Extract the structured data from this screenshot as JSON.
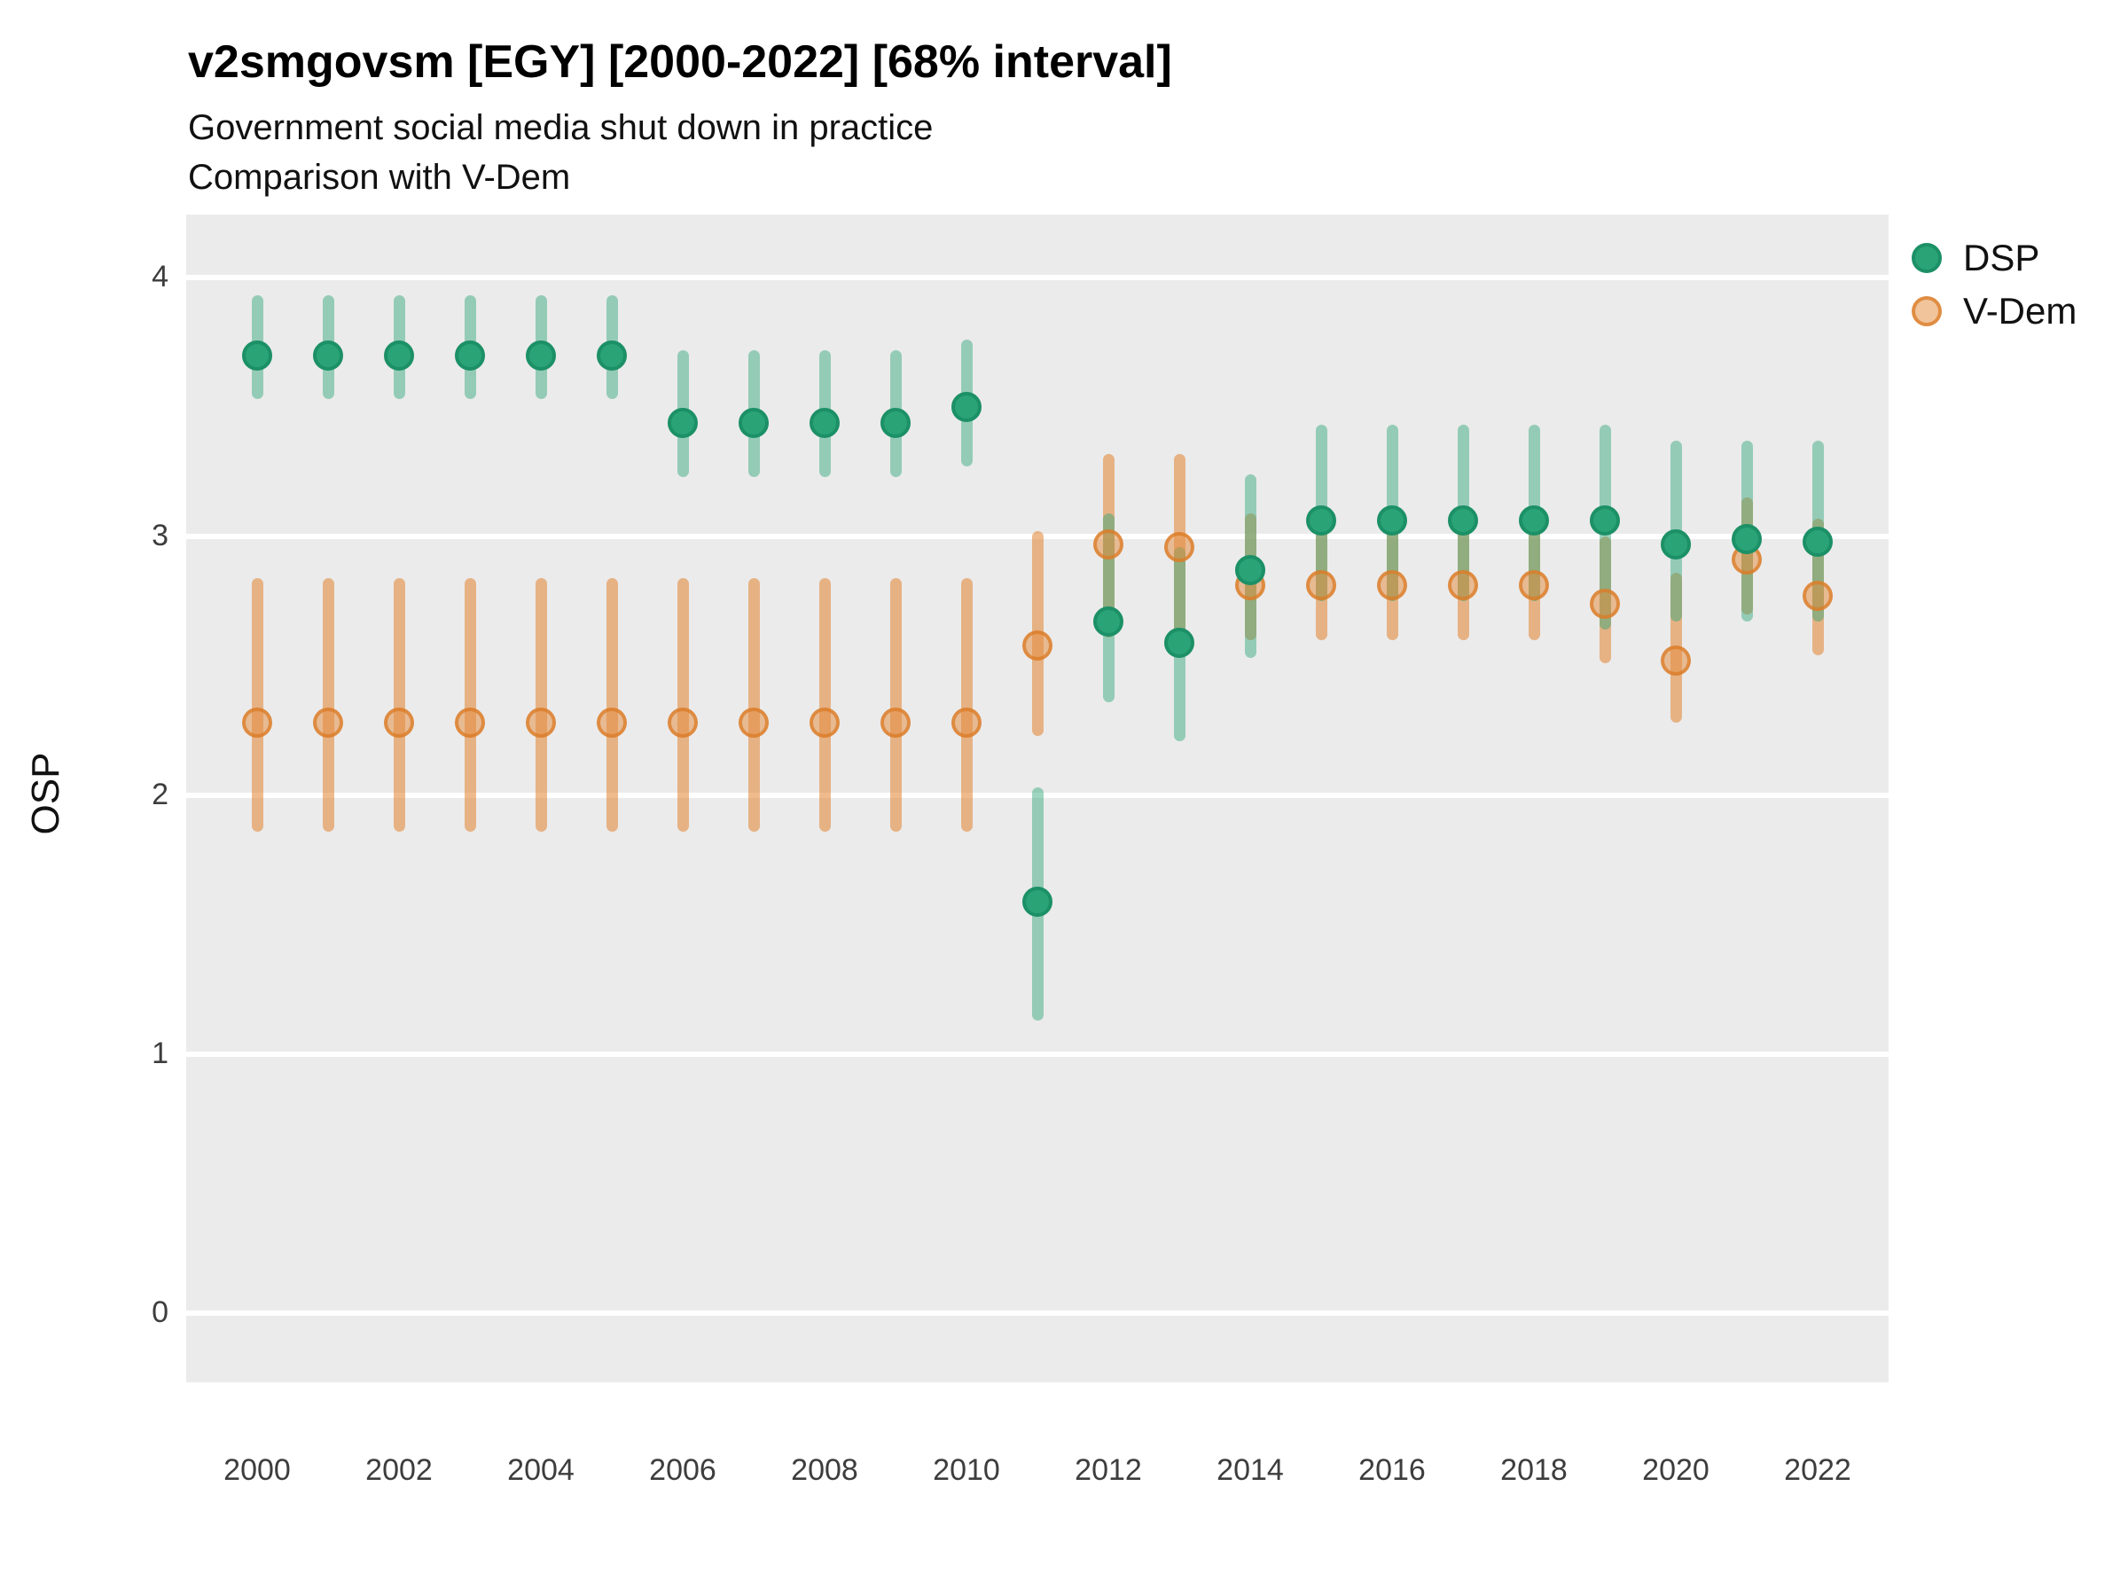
{
  "header": {
    "title": "v2smgovsm [EGY] [2000-2022] [68% interval]",
    "subtitle": "Government social media shut down in practice",
    "subtitle2": "Comparison with V-Dem"
  },
  "legend": {
    "items": [
      {
        "label": "DSP"
      },
      {
        "label": "V-Dem"
      }
    ]
  },
  "colors": {
    "panel_background": "#EBEBEB",
    "gridline": "#FFFFFF",
    "dsp_dot": "#2AA377",
    "dsp_dot_ring": "#1C9066",
    "dsp_line": "rgba(42,163,119,0.45)",
    "vdem_dot_fill": "rgba(228,138,58,0.5)",
    "vdem_dot_ring": "rgba(219,123,38,0.75)",
    "vdem_line": "rgba(226,132,48,0.55)"
  },
  "chart_data": {
    "type": "pointrange-scatter",
    "title": "v2smgovsm [EGY] [2000-2022] [68% interval]",
    "subtitle": "Government social media shut down in practice",
    "note": "Comparison with V-Dem",
    "interval": "68%",
    "xlabel": "",
    "ylabel": "OSP",
    "xlim": [
      1999,
      2023
    ],
    "ylim": [
      -0.27,
      4.24
    ],
    "x_ticks": [
      2000,
      2002,
      2004,
      2006,
      2008,
      2010,
      2012,
      2014,
      2016,
      2018,
      2020,
      2022
    ],
    "y_ticks": [
      0,
      1,
      2,
      3,
      4
    ],
    "grid": "horizontal major gridlines, white on gray panel",
    "legend_position": "right",
    "series": [
      {
        "name": "V-Dem",
        "points": [
          {
            "year": 2000,
            "value": 2.28,
            "lo": 1.86,
            "hi": 2.84
          },
          {
            "year": 2001,
            "value": 2.28,
            "lo": 1.86,
            "hi": 2.84
          },
          {
            "year": 2002,
            "value": 2.28,
            "lo": 1.86,
            "hi": 2.84
          },
          {
            "year": 2003,
            "value": 2.28,
            "lo": 1.86,
            "hi": 2.84
          },
          {
            "year": 2004,
            "value": 2.28,
            "lo": 1.86,
            "hi": 2.84
          },
          {
            "year": 2005,
            "value": 2.28,
            "lo": 1.86,
            "hi": 2.84
          },
          {
            "year": 2006,
            "value": 2.28,
            "lo": 1.86,
            "hi": 2.84
          },
          {
            "year": 2007,
            "value": 2.28,
            "lo": 1.86,
            "hi": 2.84
          },
          {
            "year": 2008,
            "value": 2.28,
            "lo": 1.86,
            "hi": 2.84
          },
          {
            "year": 2009,
            "value": 2.28,
            "lo": 1.86,
            "hi": 2.84
          },
          {
            "year": 2010,
            "value": 2.28,
            "lo": 1.86,
            "hi": 2.84
          },
          {
            "year": 2011,
            "value": 2.58,
            "lo": 2.23,
            "hi": 3.02
          },
          {
            "year": 2012,
            "value": 2.97,
            "lo": 2.61,
            "hi": 3.32
          },
          {
            "year": 2013,
            "value": 2.96,
            "lo": 2.62,
            "hi": 3.32
          },
          {
            "year": 2014,
            "value": 2.81,
            "lo": 2.6,
            "hi": 3.09
          },
          {
            "year": 2015,
            "value": 2.81,
            "lo": 2.6,
            "hi": 3.05
          },
          {
            "year": 2016,
            "value": 2.81,
            "lo": 2.6,
            "hi": 3.05
          },
          {
            "year": 2017,
            "value": 2.81,
            "lo": 2.6,
            "hi": 3.05
          },
          {
            "year": 2018,
            "value": 2.81,
            "lo": 2.6,
            "hi": 3.05
          },
          {
            "year": 2019,
            "value": 2.74,
            "lo": 2.51,
            "hi": 3.0
          },
          {
            "year": 2020,
            "value": 2.52,
            "lo": 2.28,
            "hi": 2.86
          },
          {
            "year": 2021,
            "value": 2.91,
            "lo": 2.7,
            "hi": 3.15
          },
          {
            "year": 2022,
            "value": 2.77,
            "lo": 2.54,
            "hi": 3.07
          }
        ]
      },
      {
        "name": "DSP",
        "points": [
          {
            "year": 2000,
            "value": 3.7,
            "lo": 3.53,
            "hi": 3.93
          },
          {
            "year": 2001,
            "value": 3.7,
            "lo": 3.53,
            "hi": 3.93
          },
          {
            "year": 2002,
            "value": 3.7,
            "lo": 3.53,
            "hi": 3.93
          },
          {
            "year": 2003,
            "value": 3.7,
            "lo": 3.53,
            "hi": 3.93
          },
          {
            "year": 2004,
            "value": 3.7,
            "lo": 3.53,
            "hi": 3.93
          },
          {
            "year": 2005,
            "value": 3.7,
            "lo": 3.53,
            "hi": 3.93
          },
          {
            "year": 2006,
            "value": 3.44,
            "lo": 3.23,
            "hi": 3.72
          },
          {
            "year": 2007,
            "value": 3.44,
            "lo": 3.23,
            "hi": 3.72
          },
          {
            "year": 2008,
            "value": 3.44,
            "lo": 3.23,
            "hi": 3.72
          },
          {
            "year": 2009,
            "value": 3.44,
            "lo": 3.23,
            "hi": 3.72
          },
          {
            "year": 2010,
            "value": 3.5,
            "lo": 3.27,
            "hi": 3.76
          },
          {
            "year": 2011,
            "value": 1.59,
            "lo": 1.13,
            "hi": 2.03
          },
          {
            "year": 2012,
            "value": 2.67,
            "lo": 2.36,
            "hi": 3.09
          },
          {
            "year": 2013,
            "value": 2.59,
            "lo": 2.21,
            "hi": 2.96
          },
          {
            "year": 2014,
            "value": 2.87,
            "lo": 2.53,
            "hi": 3.24
          },
          {
            "year": 2015,
            "value": 3.06,
            "lo": 2.75,
            "hi": 3.43
          },
          {
            "year": 2016,
            "value": 3.06,
            "lo": 2.75,
            "hi": 3.43
          },
          {
            "year": 2017,
            "value": 3.06,
            "lo": 2.75,
            "hi": 3.43
          },
          {
            "year": 2018,
            "value": 3.06,
            "lo": 2.75,
            "hi": 3.43
          },
          {
            "year": 2019,
            "value": 3.06,
            "lo": 2.64,
            "hi": 3.43
          },
          {
            "year": 2020,
            "value": 2.97,
            "lo": 2.67,
            "hi": 3.37
          },
          {
            "year": 2021,
            "value": 2.99,
            "lo": 2.67,
            "hi": 3.37
          },
          {
            "year": 2022,
            "value": 2.98,
            "lo": 2.67,
            "hi": 3.37
          }
        ]
      }
    ]
  }
}
